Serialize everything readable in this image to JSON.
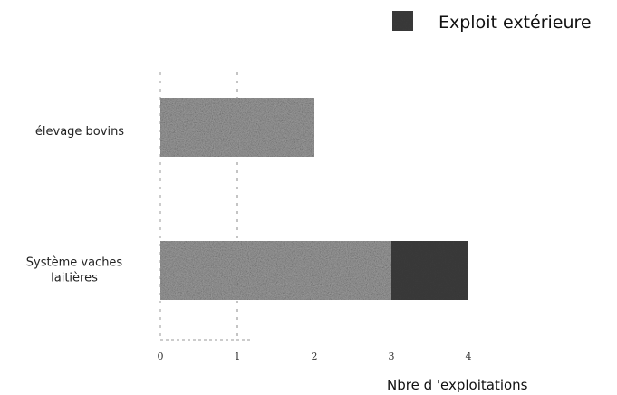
{
  "chart_data": {
    "type": "bar",
    "orientation": "horizontal",
    "stacked": true,
    "categories": [
      "élevage bovins",
      [
        "Système vaches",
        "laitières"
      ]
    ],
    "series": [
      {
        "name": "",
        "values": [
          2,
          3
        ],
        "color": "#9a9a9a",
        "pattern": "speckled-gray"
      },
      {
        "name": "Exploit extérieure",
        "values": [
          0,
          1
        ],
        "color": "#3a3a3a"
      }
    ],
    "x_ticks": [
      "0",
      "1",
      "2",
      "3",
      "4"
    ],
    "xlim": [
      0,
      4
    ],
    "xlabel": "Nbre d 'exploitations",
    "ylabel": "",
    "title": "",
    "grid": "dashed vertical lines at 0 and 1",
    "legend_placement": "top-right"
  }
}
